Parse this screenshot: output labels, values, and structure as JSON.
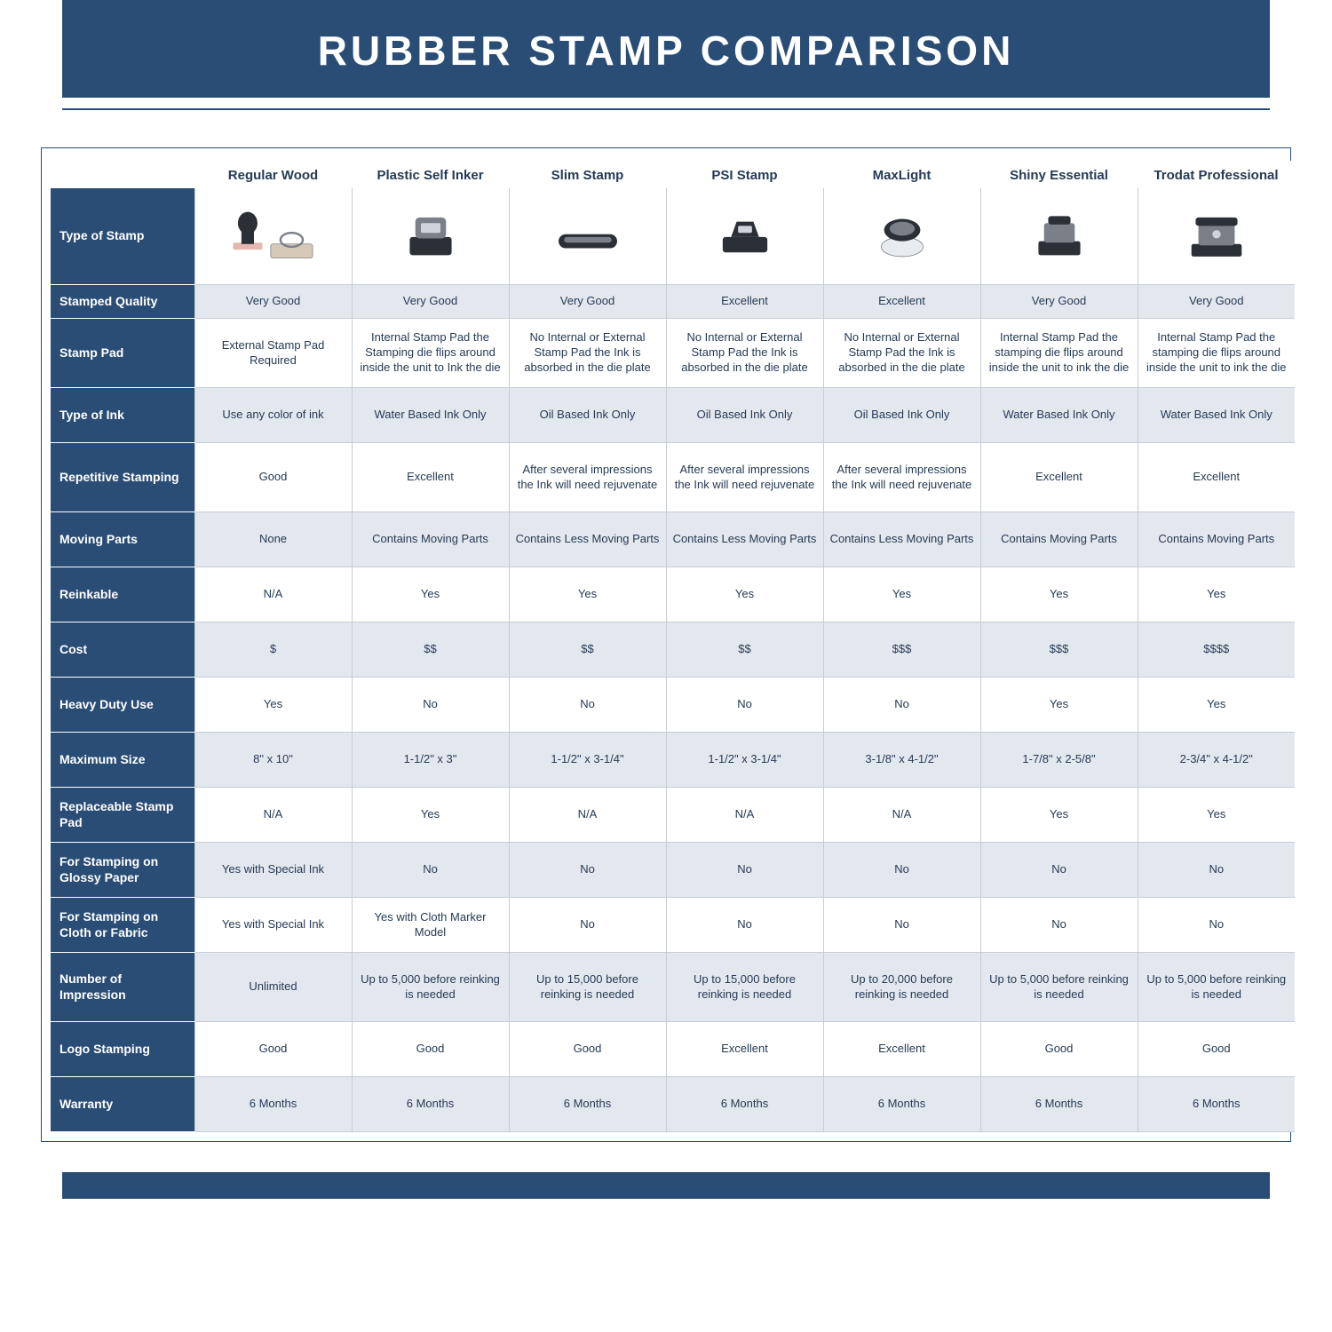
{
  "title": "RUBBER STAMP COMPARISON",
  "colors": {
    "brand": "#2a4d76",
    "band_bg": "#e3e8ef",
    "cell_border": "#c6cdd6",
    "text": "#263a55",
    "white": "#ffffff"
  },
  "columns": [
    "Regular Wood",
    "Plastic Self Inker",
    "Slim Stamp",
    "PSI Stamp",
    "MaxLight",
    "Shiny Essential",
    "Trodat Professional"
  ],
  "rows": [
    {
      "label": "Type of Stamp",
      "kind": "image"
    },
    {
      "label": "Stamped Quality",
      "band": true,
      "cells": [
        "Very Good",
        "Very Good",
        "Very Good",
        "Excellent",
        "Excellent",
        "Very Good",
        "Very Good"
      ]
    },
    {
      "label": "Stamp Pad",
      "band": false,
      "tall": true,
      "cells": [
        "External Stamp Pad Required",
        "Internal Stamp Pad the Stamping die flips around inside the unit to Ink the die",
        "No Internal or External Stamp Pad the Ink is absorbed in the die plate",
        "No Internal or External Stamp Pad the Ink is absorbed in the die plate",
        "No Internal or External Stamp Pad the Ink is absorbed in the die plate",
        "Internal Stamp Pad the stamping die flips around inside the unit to ink the die",
        "Internal Stamp Pad the stamping die flips around inside the unit to ink the die"
      ]
    },
    {
      "label": "Type of Ink",
      "band": true,
      "med": true,
      "cells": [
        "Use any color of ink",
        "Water Based Ink Only",
        "Oil Based Ink Only",
        "Oil Based Ink Only",
        "Oil Based Ink Only",
        "Water Based Ink Only",
        "Water Based Ink Only"
      ]
    },
    {
      "label": "Repetitive Stamping",
      "band": false,
      "tall": true,
      "cells": [
        "Good",
        "Excellent",
        "After several impressions the Ink will need rejuvenate",
        "After several impressions the Ink will need rejuvenate",
        "After several impressions the Ink will need rejuvenate",
        "Excellent",
        "Excellent"
      ]
    },
    {
      "label": "Moving Parts",
      "band": true,
      "med": true,
      "cells": [
        "None",
        "Contains Moving Parts",
        "Contains Less Moving Parts",
        "Contains Less Moving Parts",
        "Contains Less Moving Parts",
        "Contains Moving Parts",
        "Contains Moving Parts"
      ]
    },
    {
      "label": "Reinkable",
      "band": false,
      "med": true,
      "cells": [
        "N/A",
        "Yes",
        "Yes",
        "Yes",
        "Yes",
        "Yes",
        "Yes"
      ]
    },
    {
      "label": "Cost",
      "band": true,
      "med": true,
      "cells": [
        "$",
        "$$",
        "$$",
        "$$",
        "$$$",
        "$$$",
        "$$$$"
      ]
    },
    {
      "label": "Heavy Duty Use",
      "band": false,
      "med": true,
      "cells": [
        "Yes",
        "No",
        "No",
        "No",
        "No",
        "Yes",
        "Yes"
      ]
    },
    {
      "label": "Maximum Size",
      "band": true,
      "med": true,
      "cells": [
        "8\" x 10\"",
        "1-1/2\" x 3\"",
        "1-1/2\" x 3-1/4\"",
        "1-1/2\" x 3-1/4\"",
        "3-1/8\" x 4-1/2\"",
        "1-7/8\" x 2-5/8\"",
        "2-3/4\" x 4-1/2\""
      ]
    },
    {
      "label": "Replaceable Stamp Pad",
      "band": false,
      "med": true,
      "cells": [
        "N/A",
        "Yes",
        "N/A",
        "N/A",
        "N/A",
        "Yes",
        "Yes"
      ]
    },
    {
      "label": "For Stamping on Glossy Paper",
      "band": true,
      "med": true,
      "cells": [
        "Yes with Special Ink",
        "No",
        "No",
        "No",
        "No",
        "No",
        "No"
      ]
    },
    {
      "label": "For Stamping on Cloth or Fabric",
      "band": false,
      "med": true,
      "cells": [
        "Yes with Special Ink",
        "Yes with Cloth Marker Model",
        "No",
        "No",
        "No",
        "No",
        "No"
      ]
    },
    {
      "label": "Number of Impression",
      "band": true,
      "tall": true,
      "cells": [
        "Unlimited",
        "Up to 5,000 before reinking is needed",
        "Up to 15,000 before reinking is needed",
        "Up to 15,000 before reinking is needed",
        "Up to 20,000 before reinking is needed",
        "Up to 5,000 before reinking is needed",
        "Up to 5,000 before reinking is needed"
      ]
    },
    {
      "label": "Logo Stamping",
      "band": false,
      "med": true,
      "cells": [
        "Good",
        "Good",
        "Good",
        "Excellent",
        "Excellent",
        "Good",
        "Good"
      ]
    },
    {
      "label": "Warranty",
      "band": true,
      "med": true,
      "cells": [
        "6 Months",
        "6 Months",
        "6 Months",
        "6 Months",
        "6 Months",
        "6 Months",
        "6 Months"
      ]
    }
  ],
  "stamp_icons": [
    "wood",
    "self-inker",
    "slim",
    "psi",
    "maxlight",
    "shiny",
    "trodat"
  ]
}
